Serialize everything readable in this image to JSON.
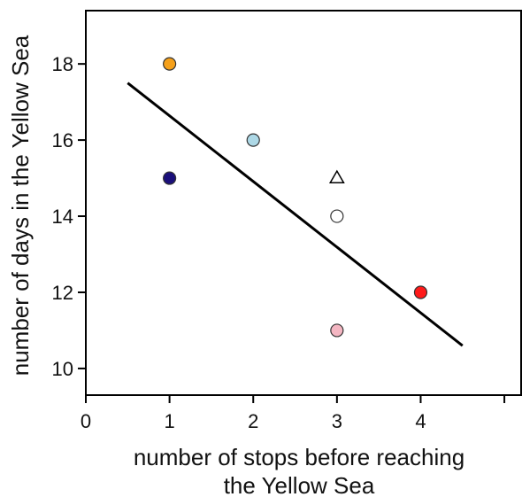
{
  "chart_data": {
    "type": "scatter",
    "title": "",
    "xlabel_lines": [
      "number of stops before reaching",
      "the Yellow Sea"
    ],
    "ylabel": "number of days in the Yellow Sea",
    "xlim": [
      0,
      5.2
    ],
    "ylim": [
      9.3,
      19.4
    ],
    "x_ticks": [
      0,
      1,
      2,
      3,
      4,
      5
    ],
    "x_tick_labels": [
      "0",
      "1",
      "2",
      "3",
      "4",
      ""
    ],
    "y_ticks": [
      10,
      12,
      14,
      16,
      18
    ],
    "y_tick_labels": [
      "10",
      "12",
      "14",
      "16",
      "18"
    ],
    "grid": false,
    "legend": "none",
    "points": [
      {
        "x": 1,
        "y": 18,
        "marker": "circle",
        "color": "#f5a01a"
      },
      {
        "x": 1,
        "y": 15,
        "marker": "circle",
        "color": "#1a0f7a"
      },
      {
        "x": 2,
        "y": 16,
        "marker": "circle",
        "color": "#add8e6"
      },
      {
        "x": 3,
        "y": 15,
        "marker": "triangle",
        "color": "#ffffff"
      },
      {
        "x": 3,
        "y": 14,
        "marker": "circle",
        "color": "#ffffff"
      },
      {
        "x": 3,
        "y": 11,
        "marker": "circle",
        "color": "#f4b6c2"
      },
      {
        "x": 4,
        "y": 12,
        "marker": "circle",
        "color": "#ff1a1a"
      }
    ],
    "trendline": {
      "x": [
        0.5,
        4.5
      ],
      "y": [
        17.5,
        10.6
      ],
      "color": "#000000"
    }
  }
}
